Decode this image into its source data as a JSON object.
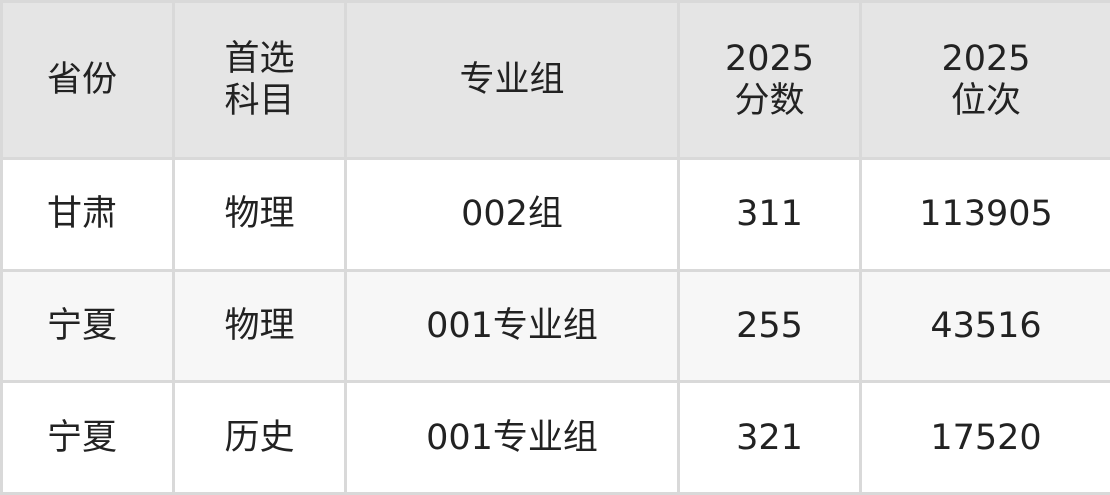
{
  "headers": [
    "省份",
    "首选\n科目",
    "专业组",
    "2025\n分数",
    "2025\n位次"
  ],
  "header_lines": [
    [
      "省份"
    ],
    [
      "首选",
      "科目"
    ],
    [
      "专业组"
    ],
    [
      "2025",
      "分数"
    ],
    [
      "2025",
      "位次"
    ]
  ],
  "rows": [
    [
      "甘肃",
      "物理",
      "002组",
      "311",
      "113905"
    ],
    [
      "宁夏",
      "物理",
      "001专业组",
      "255",
      "43516"
    ],
    [
      "宁夏",
      "历史",
      "001专业组",
      "321",
      "17520"
    ]
  ]
}
